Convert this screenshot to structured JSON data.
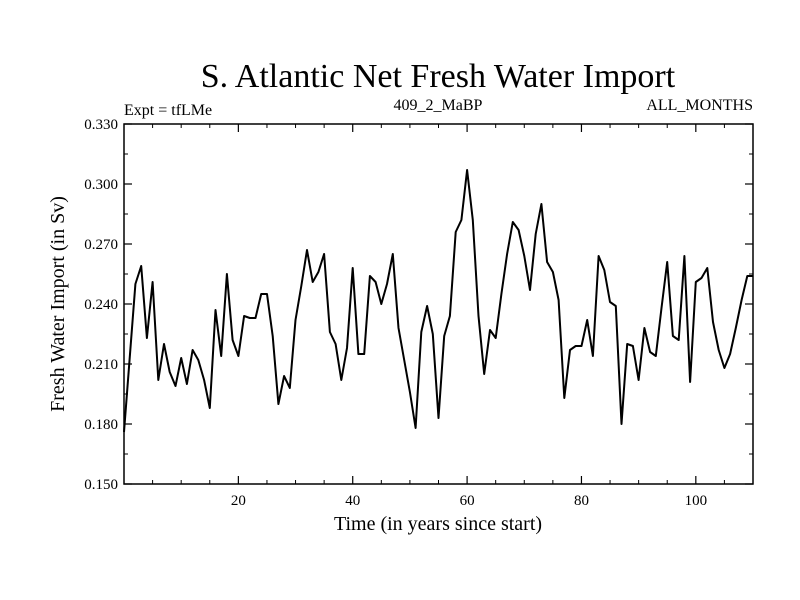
{
  "chart_data": {
    "type": "line",
    "title": "S. Atlantic Net Fresh Water Import",
    "subtitle_left": "Expt = tfLMe",
    "subtitle_center": "409_2_MaBP",
    "subtitle_right": "ALL_MONTHS",
    "xlabel": "Time (in years since start)",
    "ylabel": "Fresh Water Import (in Sv)",
    "xlim": [
      0,
      110
    ],
    "ylim": [
      0.15,
      0.33
    ],
    "xticks": [
      20,
      40,
      60,
      80,
      100
    ],
    "xtick_labels": [
      "20",
      "40",
      "60",
      "80",
      "100"
    ],
    "yticks": [
      0.15,
      0.18,
      0.21,
      0.24,
      0.27,
      0.3,
      0.33
    ],
    "ytick_labels": [
      "0.150",
      "0.180",
      "0.210",
      "0.240",
      "0.270",
      "0.300",
      "0.330"
    ],
    "grid": false,
    "line_color": "#000000",
    "series": [
      {
        "name": "Net Fresh Water Import",
        "x": [
          0,
          1,
          2,
          3,
          4,
          5,
          6,
          7,
          8,
          9,
          10,
          11,
          12,
          13,
          14,
          15,
          16,
          17,
          18,
          19,
          20,
          21,
          22,
          23,
          24,
          25,
          26,
          27,
          28,
          29,
          30,
          31,
          32,
          33,
          34,
          35,
          36,
          37,
          38,
          39,
          40,
          41,
          42,
          43,
          44,
          45,
          46,
          47,
          48,
          49,
          50,
          51,
          52,
          53,
          54,
          55,
          56,
          57,
          58,
          59,
          60,
          61,
          62,
          63,
          64,
          65,
          66,
          67,
          68,
          69,
          70,
          71,
          72,
          73,
          74,
          75,
          76,
          77,
          78,
          79,
          80,
          81,
          82,
          83,
          84,
          85,
          86,
          87,
          88,
          89,
          90,
          91,
          92,
          93,
          94,
          95,
          96,
          97,
          98,
          99,
          100,
          101,
          102,
          103,
          104,
          105,
          106,
          107,
          108,
          109,
          110
        ],
        "values": [
          0.176,
          0.213,
          0.25,
          0.259,
          0.223,
          0.251,
          0.202,
          0.22,
          0.206,
          0.199,
          0.213,
          0.2,
          0.217,
          0.212,
          0.202,
          0.188,
          0.237,
          0.214,
          0.255,
          0.222,
          0.214,
          0.234,
          0.233,
          0.233,
          0.245,
          0.245,
          0.224,
          0.19,
          0.204,
          0.198,
          0.232,
          0.249,
          0.267,
          0.251,
          0.256,
          0.265,
          0.226,
          0.22,
          0.202,
          0.218,
          0.258,
          0.215,
          0.215,
          0.254,
          0.251,
          0.24,
          0.25,
          0.265,
          0.228,
          0.212,
          0.196,
          0.178,
          0.226,
          0.239,
          0.225,
          0.183,
          0.224,
          0.234,
          0.276,
          0.282,
          0.307,
          0.282,
          0.234,
          0.205,
          0.227,
          0.223,
          0.245,
          0.265,
          0.281,
          0.277,
          0.264,
          0.247,
          0.275,
          0.29,
          0.261,
          0.256,
          0.242,
          0.193,
          0.217,
          0.219,
          0.219,
          0.232,
          0.214,
          0.264,
          0.257,
          0.241,
          0.239,
          0.18,
          0.22,
          0.219,
          0.202,
          0.228,
          0.216,
          0.214,
          0.238,
          0.261,
          0.224,
          0.222,
          0.264,
          0.201,
          0.251,
          0.253,
          0.258,
          0.231,
          0.217,
          0.208,
          0.215,
          0.228,
          0.242,
          0.254,
          0.254
        ]
      }
    ]
  }
}
